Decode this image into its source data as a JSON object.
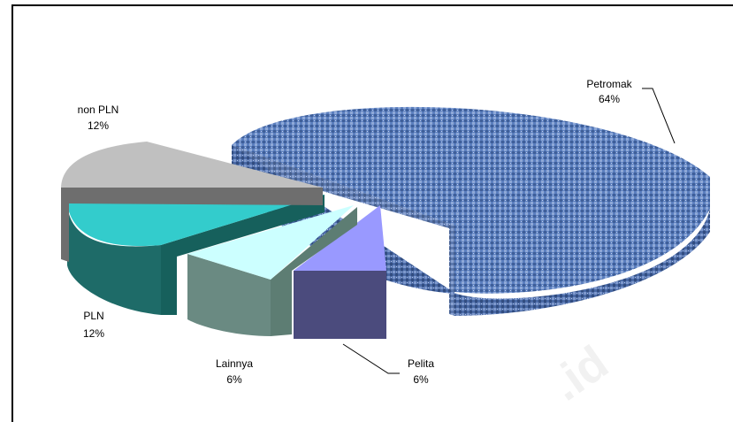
{
  "chart_data": {
    "type": "pie",
    "title": "",
    "style": "3d-exploded",
    "slices": [
      {
        "name": "Petromak",
        "value": 64,
        "label": "64%",
        "color": "#4f72b0"
      },
      {
        "name": "Pelita",
        "value": 6,
        "label": "6%",
        "color": "#9999ff"
      },
      {
        "name": "Lainnya",
        "value": 6,
        "label": "6%",
        "color": "#ccffff"
      },
      {
        "name": "PLN",
        "value": 12,
        "label": "12%",
        "color": "#33cccc"
      },
      {
        "name": "non PLN",
        "value": 12,
        "label": "12%",
        "color": "#c0c0c0"
      }
    ]
  },
  "watermark": ".id"
}
